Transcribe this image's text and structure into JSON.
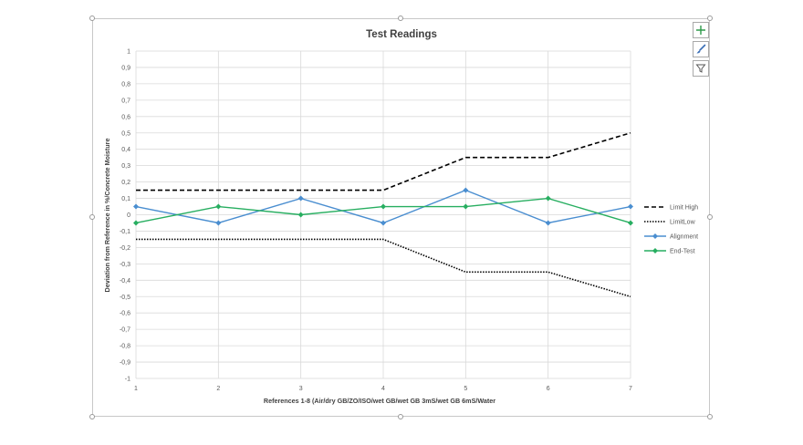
{
  "chart_data": {
    "type": "line",
    "title": "Test Readings",
    "xlabel": "References 1-8 (Air/dry GB/ZO/ISO/wet GB/wet GB 3mS/wet GB 6mS/Water",
    "ylabel": "Deviation from Reference in %/Concrete Moisture",
    "categories": [
      "1",
      "2",
      "3",
      "4",
      "5",
      "6",
      "7"
    ],
    "ylim": [
      -1,
      1
    ],
    "y_ticks": [
      "1",
      "0,9",
      "0,8",
      "0,7",
      "0,6",
      "0,5",
      "0,4",
      "0,3",
      "0,2",
      "0,1",
      "0",
      "-0,1",
      "-0,2",
      "-0,3",
      "-0,4",
      "-0,5",
      "-0,6",
      "-0,7",
      "-0,8",
      "-0,9",
      "-1"
    ],
    "grid": true,
    "legend_position": "right",
    "series": [
      {
        "name": "Limit High",
        "values": [
          0.15,
          0.15,
          0.15,
          0.15,
          0.35,
          0.35,
          0.5
        ],
        "color": "#000000",
        "style": "dashed",
        "marker": "none"
      },
      {
        "name": "LimitLow",
        "values": [
          -0.15,
          -0.15,
          -0.15,
          -0.15,
          -0.35,
          -0.35,
          -0.5
        ],
        "color": "#000000",
        "style": "dotted",
        "marker": "none"
      },
      {
        "name": "Alignment",
        "values": [
          0.05,
          -0.05,
          0.1,
          -0.05,
          0.15,
          -0.05,
          0.05
        ],
        "color": "#4a8ed0",
        "style": "solid",
        "marker": "diamond"
      },
      {
        "name": "End-Test",
        "values": [
          -0.05,
          0.05,
          0.0,
          0.05,
          0.05,
          0.1,
          -0.05
        ],
        "color": "#27ae60",
        "style": "solid",
        "marker": "diamond"
      }
    ]
  },
  "ui": {
    "add_element_icon": "plus-icon",
    "style_icon": "brush-icon",
    "filter_icon": "filter-icon"
  }
}
